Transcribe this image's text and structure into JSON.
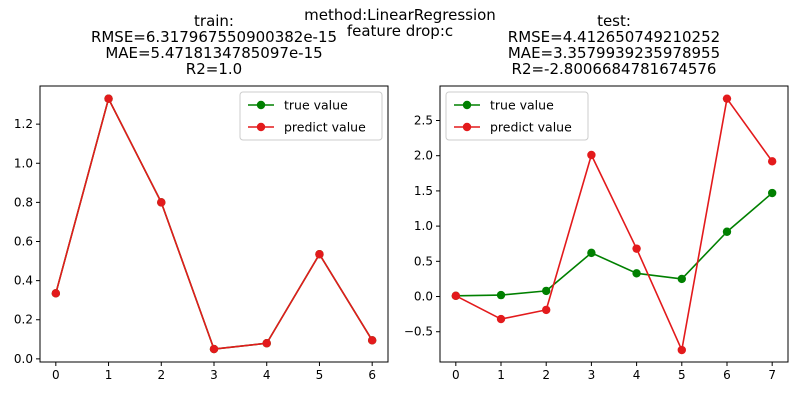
{
  "suptitle": [
    "method:LinearRegression",
    "feature drop:c"
  ],
  "chart_data": [
    {
      "type": "line",
      "title": [
        "train:",
        "RMSE=6.317967550900382e-15",
        "MAE=5.4718134785097e-15",
        "R2=1.0"
      ],
      "xlabel": "",
      "ylabel": "",
      "x": [
        0,
        1,
        2,
        3,
        4,
        5,
        6
      ],
      "xlim": [
        -0.3,
        6.3
      ],
      "ylim": [
        -0.016,
        1.395
      ],
      "xticks": [
        0,
        1,
        2,
        3,
        4,
        5,
        6
      ],
      "yticks": [
        0.0,
        0.2,
        0.4,
        0.6,
        0.8,
        1.0,
        1.2
      ],
      "ytick_labels": [
        "0.0",
        "0.2",
        "0.4",
        "0.6",
        "0.8",
        "1.0",
        "1.2"
      ],
      "legend": "top-right",
      "grid": false,
      "series": [
        {
          "name": "true value",
          "color": "#008000",
          "values": [
            0.335,
            1.33,
            0.8,
            0.05,
            0.08,
            0.535,
            0.095
          ]
        },
        {
          "name": "predict value",
          "color": "#e31a1c",
          "values": [
            0.335,
            1.33,
            0.8,
            0.05,
            0.08,
            0.535,
            0.095
          ]
        }
      ]
    },
    {
      "type": "line",
      "title": [
        "test:",
        "RMSE=4.412650749210252",
        "MAE=3.3579939235978955",
        "R2=-2.8006684781674576"
      ],
      "xlabel": "",
      "ylabel": "",
      "x": [
        0,
        1,
        2,
        3,
        4,
        5,
        6,
        7
      ],
      "xlim": [
        -0.35,
        7.35
      ],
      "ylim": [
        -0.93,
        2.99
      ],
      "xticks": [
        0,
        1,
        2,
        3,
        4,
        5,
        6,
        7
      ],
      "yticks": [
        -0.5,
        0.0,
        0.5,
        1.0,
        1.5,
        2.0,
        2.5
      ],
      "ytick_labels": [
        "−0.5",
        "0.0",
        "0.5",
        "1.0",
        "1.5",
        "2.0",
        "2.5"
      ],
      "legend": "top-left",
      "grid": false,
      "series": [
        {
          "name": "true value",
          "color": "#008000",
          "values": [
            0.01,
            0.02,
            0.08,
            0.62,
            0.33,
            0.25,
            0.92,
            1.47
          ]
        },
        {
          "name": "predict value",
          "color": "#e31a1c",
          "values": [
            0.01,
            -0.32,
            -0.19,
            2.01,
            0.68,
            -0.76,
            2.81,
            1.92
          ]
        }
      ]
    }
  ]
}
